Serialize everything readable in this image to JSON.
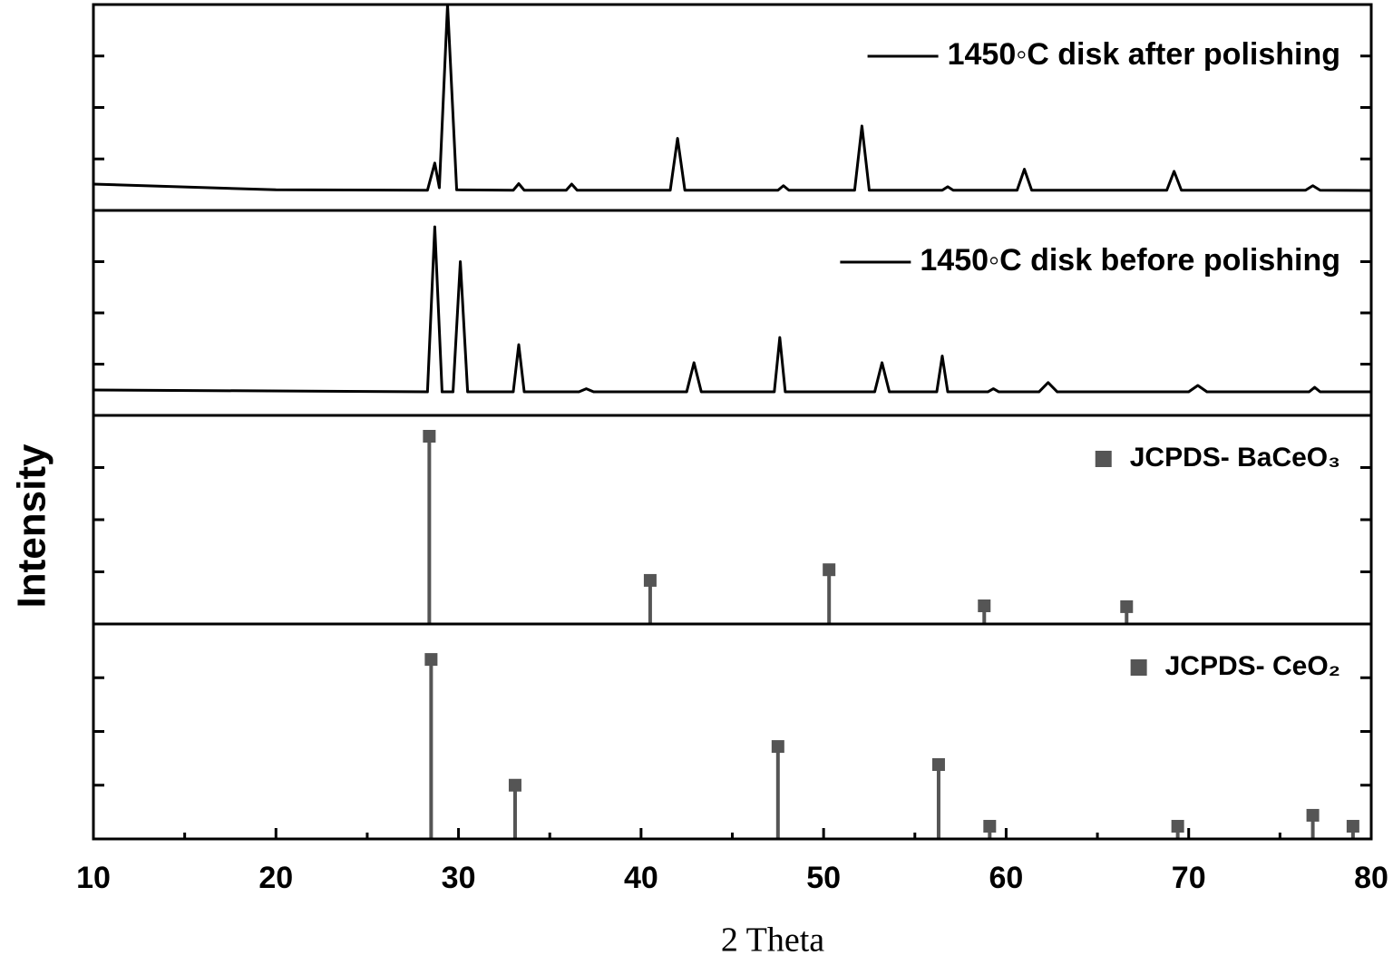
{
  "xlabel": "2 Theta",
  "ylabel": "Intensity",
  "chart_data": [
    {
      "type": "line",
      "xlim": [
        10,
        80
      ],
      "ylim": [
        0,
        100
      ],
      "yticks": [
        25,
        50,
        75
      ],
      "legend": "upper right",
      "x": [
        10,
        20,
        28.3,
        28.7,
        28.95,
        29.4,
        29.9,
        33.0,
        33.3,
        33.6,
        35.9,
        36.2,
        36.5,
        41.6,
        42.0,
        42.4,
        47.5,
        47.8,
        48.1,
        51.7,
        52.1,
        52.5,
        56.5,
        56.8,
        57.1,
        60.6,
        61.0,
        61.4,
        68.8,
        69.2,
        69.6,
        76.4,
        76.8,
        77.2,
        80
      ],
      "series": [
        {
          "name": "1450◦C disk after polishing",
          "color": "#000000",
          "values": [
            12.8,
            10,
            9.8,
            23,
            11,
            100,
            10,
            9.8,
            13,
            9.8,
            9.8,
            12.8,
            9.8,
            9.8,
            35,
            9.8,
            9.8,
            12,
            9.8,
            9.8,
            41,
            9.8,
            9.8,
            11.5,
            9.8,
            9.8,
            20,
            9.8,
            9.8,
            19,
            9.8,
            9.8,
            12,
            9.8,
            9.7
          ]
        }
      ]
    },
    {
      "type": "line",
      "xlim": [
        10,
        80
      ],
      "ylim": [
        0,
        100
      ],
      "yticks": [
        25,
        50,
        75
      ],
      "legend": "upper right",
      "x": [
        10,
        28.3,
        28.7,
        29.1,
        29.7,
        30.1,
        30.5,
        33.0,
        33.3,
        33.6,
        36.6,
        37.0,
        37.4,
        42.5,
        42.9,
        43.3,
        47.3,
        47.6,
        47.9,
        52.8,
        53.2,
        53.6,
        56.2,
        56.5,
        56.8,
        59.0,
        59.3,
        59.6,
        61.8,
        62.3,
        62.8,
        70.0,
        70.5,
        71.0,
        76.6,
        76.9,
        77.2,
        80
      ],
      "series": [
        {
          "name": "1450◦C disk before polishing",
          "color": "#000000",
          "values": [
            12.4,
            11.5,
            92,
            11.5,
            11.5,
            75,
            11.5,
            11.5,
            34.5,
            11.5,
            11.5,
            13,
            11.5,
            11.5,
            25.7,
            11.5,
            11.5,
            38,
            11.5,
            11.5,
            25.7,
            11.5,
            11.5,
            29,
            11.5,
            11.5,
            13,
            11.5,
            11.5,
            16,
            11.5,
            11.5,
            14.6,
            11.5,
            11.5,
            13.7,
            11.5,
            11.5
          ]
        }
      ]
    },
    {
      "type": "stem",
      "xlim": [
        10,
        80
      ],
      "ylim": [
        0,
        100
      ],
      "yticks": [
        25,
        50,
        75
      ],
      "legend": "upper right",
      "x": [
        28.4,
        40.5,
        50.3,
        58.8,
        66.6
      ],
      "series": [
        {
          "name": "JCPDS- BaCeO₃",
          "color": "#555555",
          "values": [
            90,
            20.9,
            26,
            8.7,
            8.3
          ]
        }
      ]
    },
    {
      "type": "stem",
      "xlim": [
        10,
        80
      ],
      "ylim": [
        0,
        100
      ],
      "yticks": [
        25,
        50,
        75
      ],
      "legend": "upper right",
      "xticks": [
        10,
        20,
        30,
        40,
        50,
        60,
        70,
        80
      ],
      "xminor_ticks": [
        15,
        25,
        35,
        45,
        55,
        65,
        75
      ],
      "x": [
        28.5,
        33.1,
        47.5,
        56.3,
        59.1,
        69.4,
        76.8,
        79.0
      ],
      "series": [
        {
          "name": "JCPDS- CeO₂",
          "color": "#555555",
          "values": [
            83.5,
            25,
            43,
            34.6,
            5.9,
            5.9,
            11,
            5.9
          ]
        }
      ]
    }
  ]
}
